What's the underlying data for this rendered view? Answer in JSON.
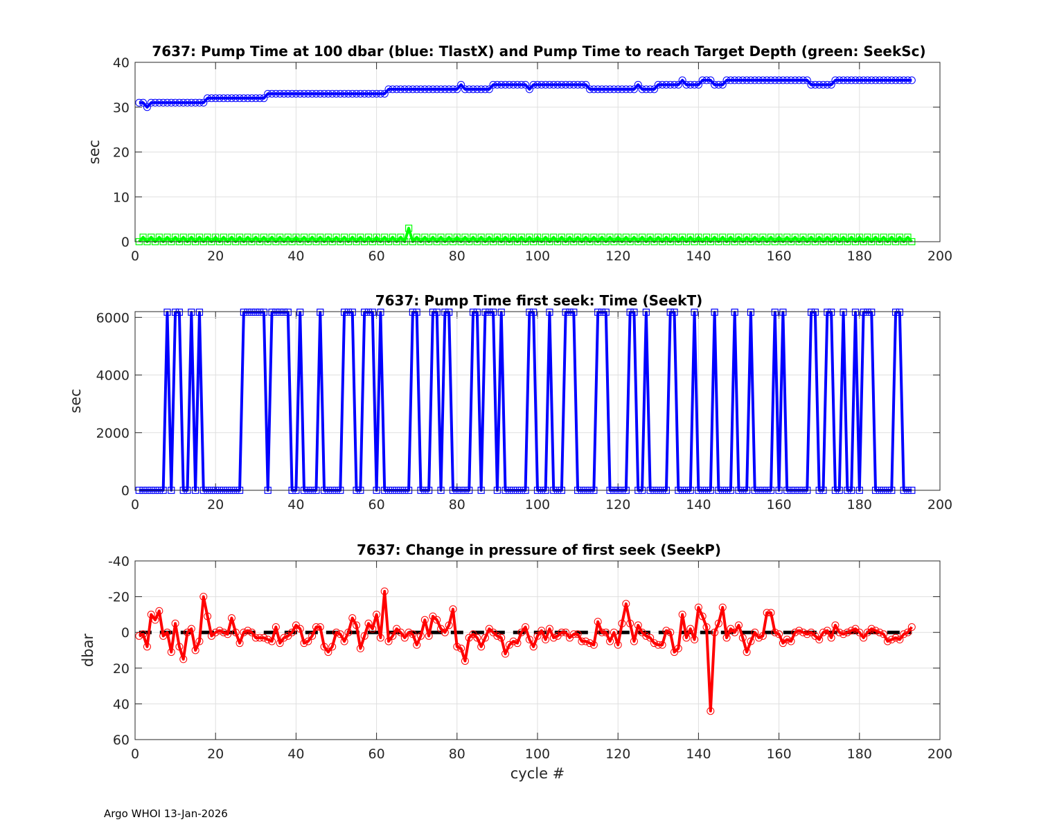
{
  "footer": "Argo WHOI 13-Jan-2026",
  "chart_data": [
    {
      "type": "line",
      "title": "7637:  Pump Time at 100 dbar (blue: TlastX) and Pump Time to reach Target Depth (green: SeekSc)",
      "xlabel": "",
      "ylabel": "sec",
      "xlim": [
        0,
        200
      ],
      "ylim": [
        0,
        40
      ],
      "reverse_y": false,
      "xticks": [
        "0",
        "20",
        "40",
        "60",
        "80",
        "100",
        "120",
        "140",
        "160",
        "180",
        "200"
      ],
      "yticks": [
        "0",
        "10",
        "20",
        "30",
        "40"
      ],
      "grid": true,
      "series": [
        {
          "name": "TlastX",
          "color": "#0000ff",
          "marker": "circle",
          "values": [
            31,
            31,
            30,
            31,
            31,
            31,
            31,
            31,
            31,
            31,
            31,
            31,
            31,
            31,
            31,
            31,
            31,
            32,
            32,
            32,
            32,
            32,
            32,
            32,
            32,
            32,
            32,
            32,
            32,
            32,
            32,
            32,
            33,
            33,
            33,
            33,
            33,
            33,
            33,
            33,
            33,
            33,
            33,
            33,
            33,
            33,
            33,
            33,
            33,
            33,
            33,
            33,
            33,
            33,
            33,
            33,
            33,
            33,
            33,
            33,
            33,
            33,
            34,
            34,
            34,
            34,
            34,
            34,
            34,
            34,
            34,
            34,
            34,
            34,
            34,
            34,
            34,
            34,
            34,
            34,
            35,
            34,
            34,
            34,
            34,
            34,
            34,
            34,
            35,
            35,
            35,
            35,
            35,
            35,
            35,
            35,
            35,
            34,
            35,
            35,
            35,
            35,
            35,
            35,
            35,
            35,
            35,
            35,
            35,
            35,
            35,
            35,
            34,
            34,
            34,
            34,
            34,
            34,
            34,
            34,
            34,
            34,
            34,
            34,
            35,
            34,
            34,
            34,
            34,
            35,
            35,
            35,
            35,
            35,
            35,
            36,
            35,
            35,
            35,
            35,
            36,
            36,
            36,
            35,
            35,
            35,
            36,
            36,
            36,
            36,
            36,
            36,
            36,
            36,
            36,
            36,
            36,
            36,
            36,
            36,
            36,
            36,
            36,
            36,
            36,
            36,
            36,
            35,
            35,
            35,
            35,
            35,
            35,
            36,
            36,
            36,
            36,
            36,
            36,
            36,
            36,
            36,
            36,
            36,
            36,
            36,
            36,
            36,
            36,
            36,
            36,
            36,
            36
          ]
        },
        {
          "name": "SeekSc",
          "color": "#00ff00",
          "marker": "square",
          "values": [
            0,
            1,
            0,
            1,
            0,
            1,
            0,
            1,
            0,
            1,
            0,
            1,
            0,
            1,
            0,
            1,
            0,
            1,
            0,
            1,
            0,
            1,
            0,
            1,
            0,
            1,
            0,
            1,
            0,
            1,
            0,
            1,
            0,
            1,
            0,
            1,
            0,
            1,
            0,
            1,
            0,
            1,
            0,
            1,
            0,
            1,
            0,
            1,
            0,
            1,
            0,
            1,
            0,
            1,
            0,
            1,
            0,
            1,
            0,
            1,
            0,
            1,
            0,
            1,
            0,
            1,
            0,
            3,
            0,
            1,
            0,
            1,
            0,
            1,
            0,
            1,
            0,
            1,
            0,
            1,
            0,
            1,
            0,
            1,
            0,
            1,
            0,
            1,
            0,
            1,
            0,
            1,
            0,
            1,
            0,
            1,
            0,
            1,
            0,
            1,
            0,
            1,
            0,
            1,
            0,
            1,
            0,
            1,
            0,
            1,
            0,
            1,
            0,
            1,
            0,
            1,
            0,
            1,
            0,
            1,
            0,
            1,
            0,
            1,
            0,
            1,
            0,
            1,
            0,
            1,
            0,
            1,
            0,
            1,
            0,
            1,
            0,
            1,
            0,
            1,
            0,
            1,
            0,
            1,
            0,
            1,
            0,
            1,
            0,
            1,
            0,
            1,
            0,
            1,
            0,
            1,
            0,
            1,
            0,
            1,
            0,
            1,
            0,
            1,
            0,
            1,
            0,
            1,
            0,
            1,
            0,
            1,
            0,
            1,
            0,
            1,
            0,
            1,
            0,
            1,
            0,
            1,
            0,
            1,
            0,
            1,
            0,
            1,
            0,
            1,
            0,
            1,
            0
          ]
        }
      ]
    },
    {
      "type": "line",
      "title": "7637: Pump Time first seek: Time (SeekT)",
      "xlabel": "",
      "ylabel": "sec",
      "xlim": [
        0,
        200
      ],
      "ylim": [
        0,
        6200
      ],
      "reverse_y": false,
      "xticks": [
        "0",
        "20",
        "40",
        "60",
        "80",
        "100",
        "120",
        "140",
        "160",
        "180",
        "200"
      ],
      "yticks": [
        "0",
        "2000",
        "4000",
        "6000"
      ],
      "grid": true,
      "high_value": 6180,
      "high_cycles": [
        8,
        10,
        11,
        14,
        16,
        27,
        28,
        29,
        30,
        31,
        32,
        34,
        35,
        36,
        37,
        38,
        41,
        46,
        52,
        53,
        54,
        57,
        58,
        59,
        61,
        69,
        70,
        74,
        75,
        77,
        78,
        84,
        85,
        87,
        88,
        89,
        91,
        98,
        99,
        103,
        107,
        108,
        109,
        115,
        116,
        117,
        123,
        124,
        127,
        133,
        134,
        139,
        144,
        149,
        153,
        159,
        161,
        168,
        169,
        172,
        173,
        176,
        179,
        181,
        182,
        183,
        189,
        190
      ],
      "series": [
        {
          "name": "SeekT",
          "color": "#0000ff",
          "marker": "square",
          "cycles": [
            1,
            193
          ]
        }
      ]
    },
    {
      "type": "line",
      "title": "7637: Change in pressure of first seek (SeekP)",
      "xlabel": "cycle #",
      "ylabel": "dbar",
      "xlim": [
        0,
        200
      ],
      "ylim": [
        -40,
        60
      ],
      "reverse_y": true,
      "xticks": [
        "0",
        "20",
        "40",
        "60",
        "80",
        "100",
        "120",
        "140",
        "160",
        "180",
        "200"
      ],
      "yticks": [
        "-40",
        "-20",
        "0",
        "20",
        "40",
        "60"
      ],
      "grid": true,
      "reference_line": {
        "value": 0,
        "color": "#000000",
        "style": "dashed",
        "x_range": [
          1,
          193
        ]
      },
      "series": [
        {
          "name": "SeekP",
          "color": "#ff0000",
          "marker": "circle",
          "values": [
            2,
            1,
            8,
            -10,
            -7,
            -12,
            2,
            0,
            11,
            -5,
            8,
            15,
            0,
            -2,
            10,
            5,
            -20,
            -9,
            2,
            0,
            -1,
            0,
            1,
            -8,
            0,
            6,
            0,
            -1,
            0,
            3,
            3,
            3,
            4,
            5,
            -3,
            6,
            3,
            2,
            0,
            -4,
            -2,
            6,
            5,
            2,
            -3,
            -3,
            8,
            11,
            8,
            0,
            1,
            5,
            0,
            -8,
            -4,
            9,
            2,
            -5,
            -2,
            -10,
            3,
            -23,
            5,
            2,
            -2,
            0,
            3,
            0,
            1,
            7,
            2,
            -7,
            2,
            -9,
            -7,
            -2,
            0,
            -4,
            -13,
            8,
            9,
            16,
            3,
            1,
            3,
            8,
            3,
            -2,
            0,
            2,
            3,
            12,
            7,
            5,
            6,
            0,
            -3,
            4,
            8,
            2,
            -1,
            4,
            -2,
            3,
            2,
            0,
            0,
            3,
            1,
            1,
            5,
            5,
            6,
            7,
            -6,
            0,
            0,
            5,
            0,
            7,
            -5,
            -16,
            -5,
            5,
            -4,
            0,
            2,
            3,
            6,
            7,
            7,
            -1,
            0,
            11,
            9,
            -10,
            3,
            -2,
            4,
            -14,
            -9,
            -3,
            44,
            0,
            -5,
            -14,
            3,
            -2,
            0,
            -4,
            3,
            11,
            5,
            0,
            3,
            2,
            -11,
            -11,
            0,
            1,
            6,
            4,
            5,
            0,
            -1,
            0,
            1,
            0,
            2,
            4,
            0,
            -1,
            3,
            -4,
            0,
            1,
            0,
            -1,
            -2,
            0,
            3,
            0,
            -2,
            -1,
            0,
            1,
            5,
            4,
            3,
            4,
            1,
            0,
            -3
          ]
        }
      ]
    }
  ]
}
